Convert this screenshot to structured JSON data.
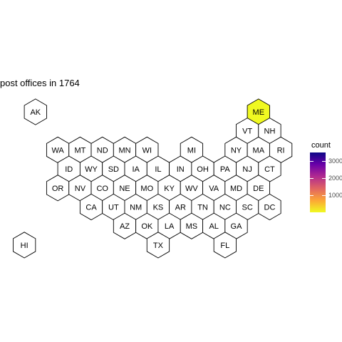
{
  "title": "post offices in 1764",
  "colors": {
    "empty_fill": "#ffffff",
    "hex_stroke": "#000000",
    "scale": [
      "#0d0887",
      "#6a00a8",
      "#b12a90",
      "#e16462",
      "#fca636",
      "#f0f921"
    ]
  },
  "legend": {
    "title": "count",
    "ticks": [
      {
        "value": 1000,
        "label": "1000"
      },
      {
        "value": 2000,
        "label": "2000"
      },
      {
        "value": 3000,
        "label": "3000"
      }
    ],
    "range": [
      0,
      3500
    ]
  },
  "chart_data": {
    "type": "heatmap",
    "title": "post offices in 1764",
    "legend_title": "count",
    "legend_placement": "right",
    "filled_state": "ME",
    "states": [
      {
        "abbr": "AK",
        "row": 0,
        "col": 1,
        "count": null
      },
      {
        "abbr": "ME",
        "row": 0,
        "col": 11,
        "count": 0
      },
      {
        "abbr": "VT",
        "row": 1,
        "col": 10,
        "count": null
      },
      {
        "abbr": "NH",
        "row": 1,
        "col": 11,
        "count": null
      },
      {
        "abbr": "WA",
        "row": 2,
        "col": 2,
        "count": null
      },
      {
        "abbr": "MT",
        "row": 2,
        "col": 3,
        "count": null
      },
      {
        "abbr": "ND",
        "row": 2,
        "col": 4,
        "count": null
      },
      {
        "abbr": "MN",
        "row": 2,
        "col": 5,
        "count": null
      },
      {
        "abbr": "WI",
        "row": 2,
        "col": 6,
        "count": null
      },
      {
        "abbr": "MI",
        "row": 2,
        "col": 8,
        "count": null
      },
      {
        "abbr": "NY",
        "row": 2,
        "col": 10,
        "count": null
      },
      {
        "abbr": "MA",
        "row": 2,
        "col": 11,
        "count": null
      },
      {
        "abbr": "RI",
        "row": 2,
        "col": 12,
        "count": null
      },
      {
        "abbr": "ID",
        "row": 3,
        "col": 2,
        "count": null
      },
      {
        "abbr": "WY",
        "row": 3,
        "col": 3,
        "count": null
      },
      {
        "abbr": "SD",
        "row": 3,
        "col": 4,
        "count": null
      },
      {
        "abbr": "IA",
        "row": 3,
        "col": 5,
        "count": null
      },
      {
        "abbr": "IL",
        "row": 3,
        "col": 6,
        "count": null
      },
      {
        "abbr": "IN",
        "row": 3,
        "col": 7,
        "count": null
      },
      {
        "abbr": "OH",
        "row": 3,
        "col": 8,
        "count": null
      },
      {
        "abbr": "PA",
        "row": 3,
        "col": 9,
        "count": null
      },
      {
        "abbr": "NJ",
        "row": 3,
        "col": 10,
        "count": null
      },
      {
        "abbr": "CT",
        "row": 3,
        "col": 11,
        "count": null
      },
      {
        "abbr": "OR",
        "row": 4,
        "col": 2,
        "count": null
      },
      {
        "abbr": "NV",
        "row": 4,
        "col": 3,
        "count": null
      },
      {
        "abbr": "CO",
        "row": 4,
        "col": 4,
        "count": null
      },
      {
        "abbr": "NE",
        "row": 4,
        "col": 5,
        "count": null
      },
      {
        "abbr": "MO",
        "row": 4,
        "col": 6,
        "count": null
      },
      {
        "abbr": "KY",
        "row": 4,
        "col": 7,
        "count": null
      },
      {
        "abbr": "WV",
        "row": 4,
        "col": 8,
        "count": null
      },
      {
        "abbr": "VA",
        "row": 4,
        "col": 9,
        "count": null
      },
      {
        "abbr": "MD",
        "row": 4,
        "col": 10,
        "count": null
      },
      {
        "abbr": "DE",
        "row": 4,
        "col": 11,
        "count": null
      },
      {
        "abbr": "CA",
        "row": 5,
        "col": 3,
        "count": null
      },
      {
        "abbr": "UT",
        "row": 5,
        "col": 4,
        "count": null
      },
      {
        "abbr": "NM",
        "row": 5,
        "col": 5,
        "count": null
      },
      {
        "abbr": "KS",
        "row": 5,
        "col": 6,
        "count": null
      },
      {
        "abbr": "AR",
        "row": 5,
        "col": 7,
        "count": null
      },
      {
        "abbr": "TN",
        "row": 5,
        "col": 8,
        "count": null
      },
      {
        "abbr": "NC",
        "row": 5,
        "col": 9,
        "count": null
      },
      {
        "abbr": "SC",
        "row": 5,
        "col": 10,
        "count": null
      },
      {
        "abbr": "DC",
        "row": 5,
        "col": 11,
        "count": null
      },
      {
        "abbr": "AZ",
        "row": 6,
        "col": 5,
        "count": null
      },
      {
        "abbr": "OK",
        "row": 6,
        "col": 6,
        "count": null
      },
      {
        "abbr": "LA",
        "row": 6,
        "col": 7,
        "count": null
      },
      {
        "abbr": "MS",
        "row": 6,
        "col": 8,
        "count": null
      },
      {
        "abbr": "AL",
        "row": 6,
        "col": 9,
        "count": null
      },
      {
        "abbr": "GA",
        "row": 6,
        "col": 10,
        "count": null
      },
      {
        "abbr": "HI",
        "row": 7,
        "col": 0,
        "count": null
      },
      {
        "abbr": "TX",
        "row": 7,
        "col": 6,
        "count": null
      },
      {
        "abbr": "FL",
        "row": 7,
        "col": 9,
        "count": null
      }
    ]
  }
}
